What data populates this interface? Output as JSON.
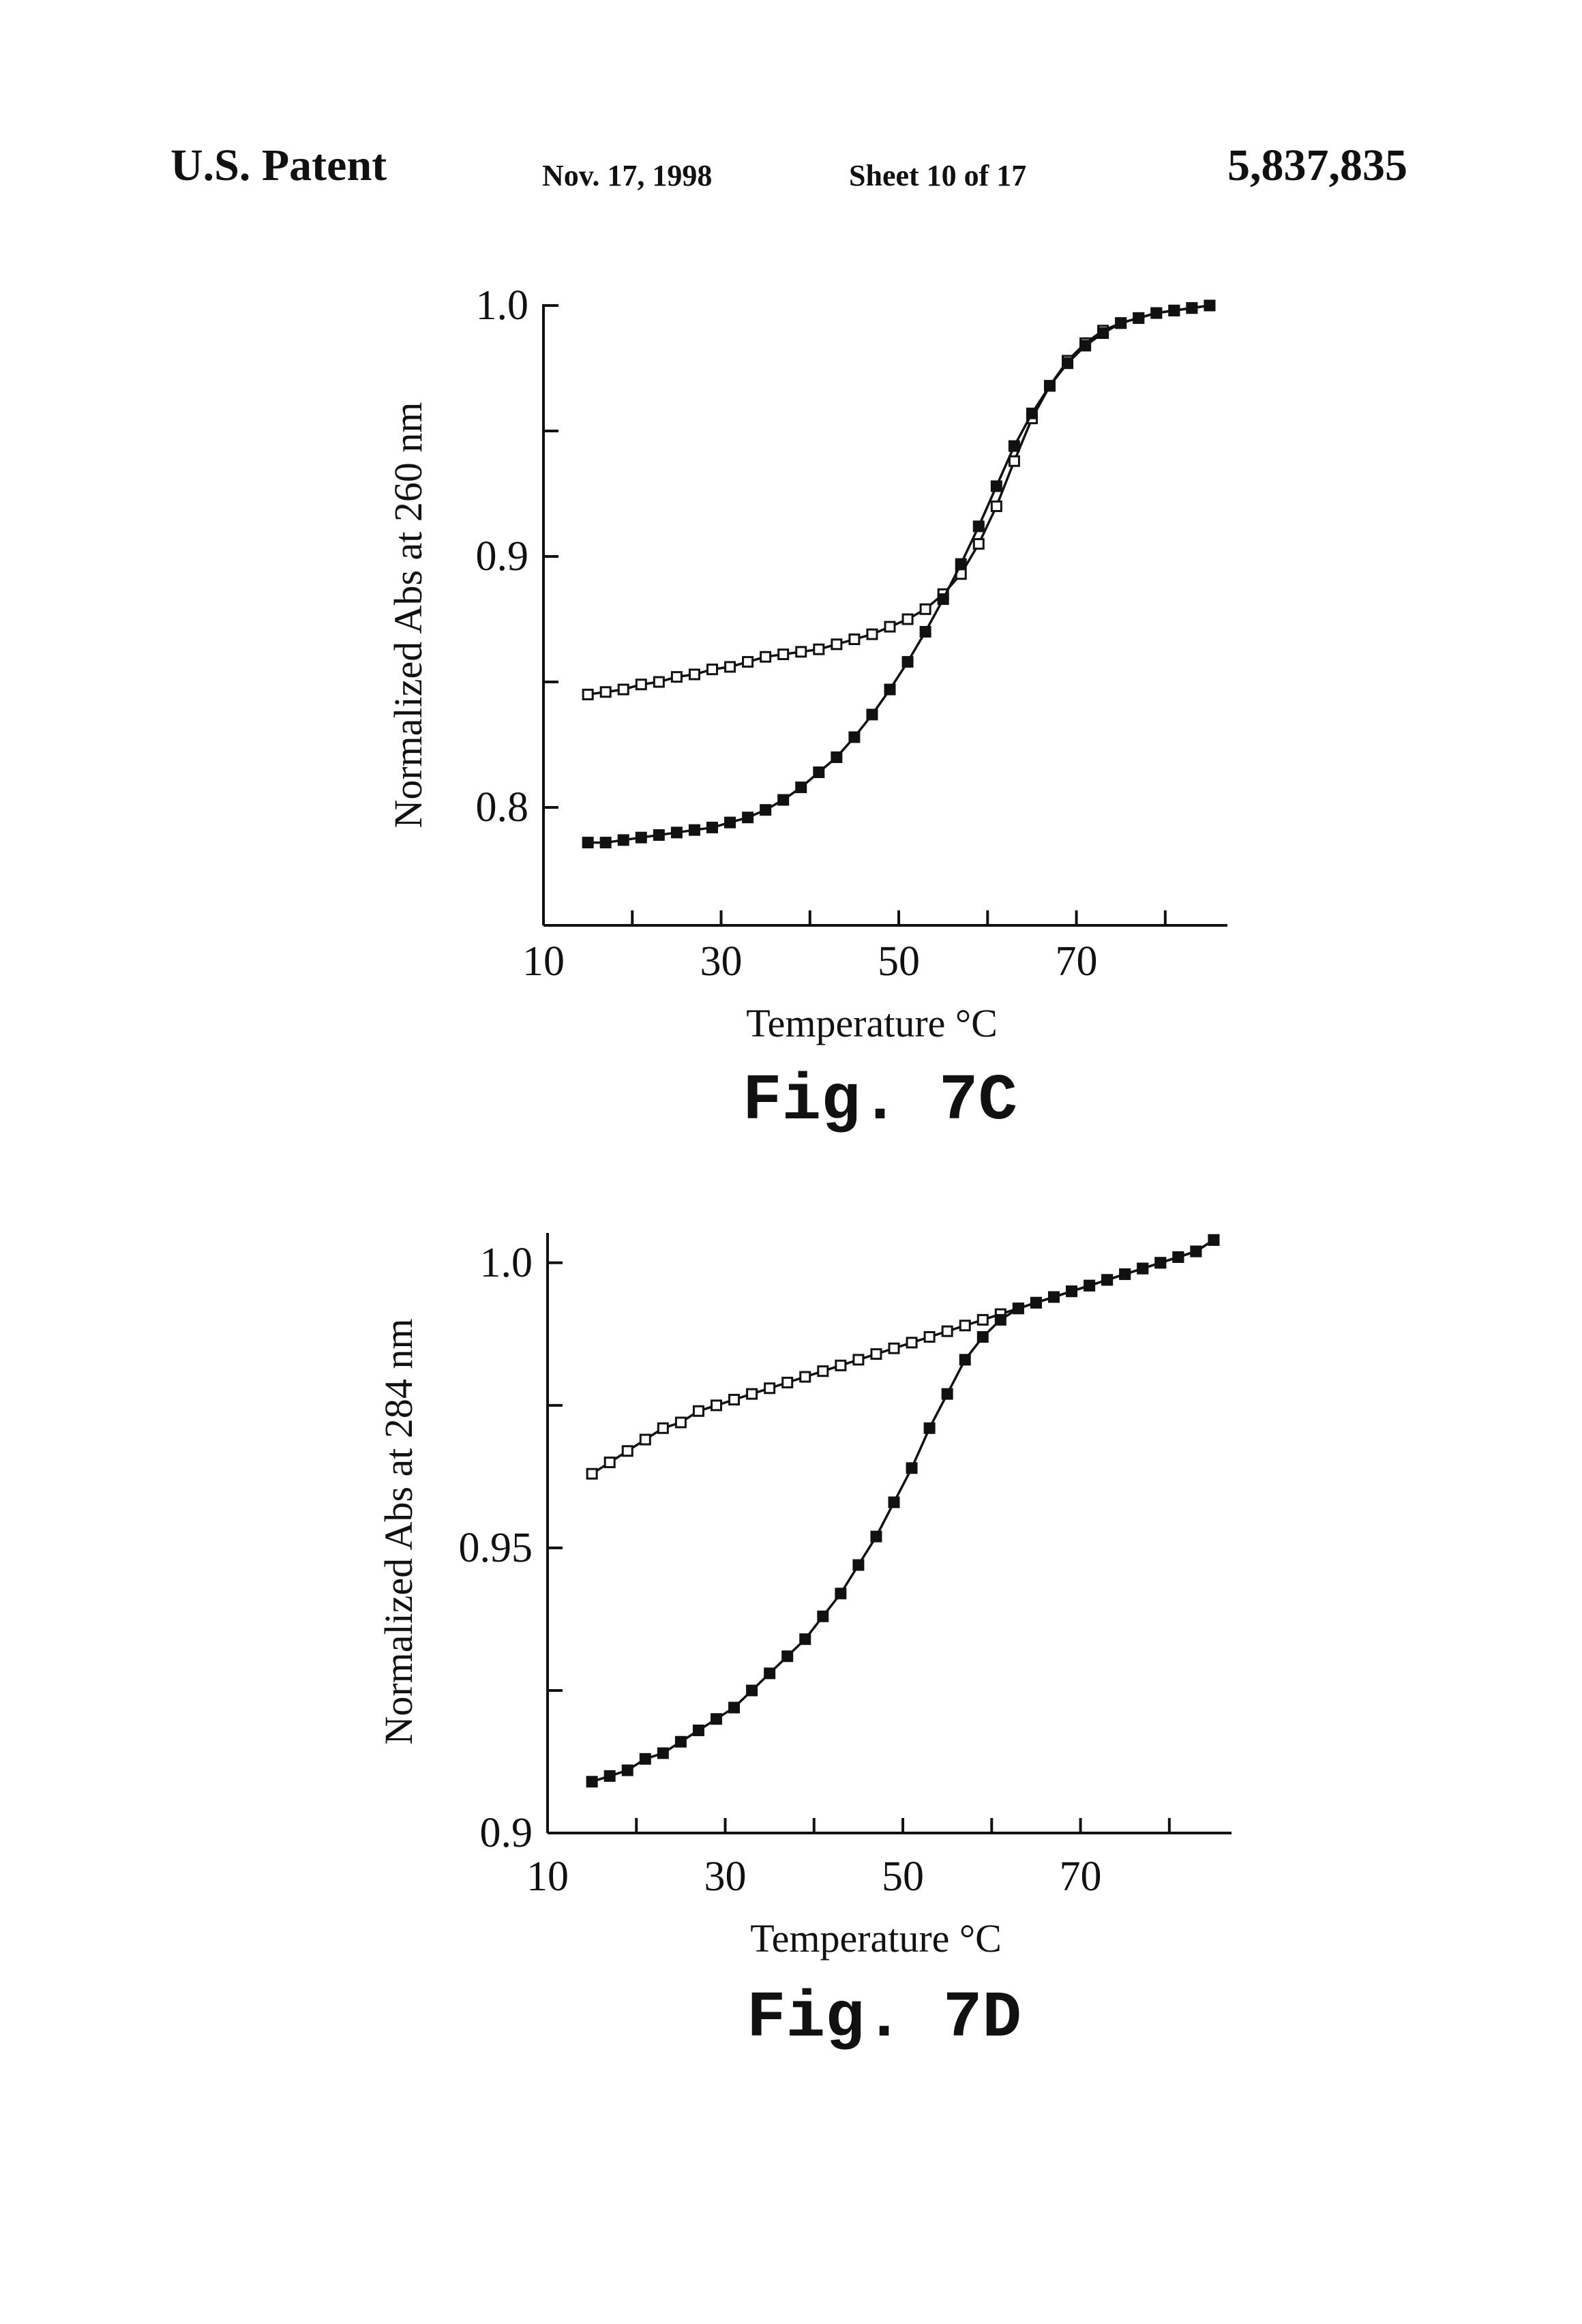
{
  "header": {
    "left": "U.S. Patent",
    "date": "Nov. 17, 1998",
    "sheet": "Sheet 10 of 17",
    "patent_number": "5,837,835"
  },
  "chart_data": [
    {
      "type": "line",
      "caption": "Fig. 7C",
      "xlabel": "Temperature °C",
      "ylabel": "Normalized Abs at 260 nm",
      "xlim": [
        10,
        87
      ],
      "ylim": [
        0.753,
        1.0
      ],
      "xticks": [
        10,
        30,
        50,
        70
      ],
      "xtick_labels": [
        "10",
        "30",
        "50",
        "70"
      ],
      "yticks": [
        0.8,
        0.9,
        1.0
      ],
      "ytick_labels": [
        "0.8",
        "0.9",
        "1.0"
      ],
      "grid": false,
      "marker_x": [
        15,
        17,
        19,
        21,
        23,
        25,
        27,
        29,
        31,
        33,
        35,
        37,
        39,
        41,
        43,
        45,
        47,
        49,
        51,
        53,
        55,
        57,
        59,
        61,
        63,
        65,
        67,
        69,
        71,
        73,
        75,
        77,
        79,
        81,
        83,
        85
      ],
      "series": [
        {
          "marker": "open-square",
          "x": [
            15,
            17,
            19,
            21,
            23,
            25,
            27,
            29,
            31,
            33,
            35,
            37,
            39,
            41,
            43,
            45,
            47,
            49,
            51,
            53,
            55,
            57,
            59,
            61,
            63,
            65,
            67,
            69,
            71,
            73,
            75,
            77,
            79,
            81,
            83,
            85
          ],
          "values": [
            0.845,
            0.846,
            0.847,
            0.849,
            0.85,
            0.852,
            0.853,
            0.855,
            0.856,
            0.858,
            0.86,
            0.861,
            0.862,
            0.863,
            0.865,
            0.867,
            0.869,
            0.872,
            0.875,
            0.879,
            0.885,
            0.893,
            0.905,
            0.92,
            0.938,
            0.955,
            0.968,
            0.978,
            0.985,
            0.99,
            0.993,
            0.995,
            0.997,
            0.998,
            0.999,
            1.0
          ]
        },
        {
          "marker": "filled-square",
          "x": [
            15,
            17,
            19,
            21,
            23,
            25,
            27,
            29,
            31,
            33,
            35,
            37,
            39,
            41,
            43,
            45,
            47,
            49,
            51,
            53,
            55,
            57,
            59,
            61,
            63,
            65,
            67,
            69,
            71,
            73,
            75,
            77,
            79,
            81,
            83,
            85
          ],
          "values": [
            0.786,
            0.786,
            0.787,
            0.788,
            0.789,
            0.79,
            0.791,
            0.792,
            0.794,
            0.796,
            0.799,
            0.803,
            0.808,
            0.814,
            0.82,
            0.828,
            0.837,
            0.847,
            0.858,
            0.87,
            0.883,
            0.897,
            0.912,
            0.928,
            0.944,
            0.957,
            0.968,
            0.977,
            0.984,
            0.989,
            0.993,
            0.995,
            0.997,
            0.998,
            0.999,
            1.0
          ]
        }
      ]
    },
    {
      "type": "line",
      "caption": "Fig. 7D",
      "xlabel": "Temperature °C",
      "ylabel": "Normalized Abs at 284 nm",
      "xlim": [
        10,
        87
      ],
      "ylim": [
        0.9,
        1.005
      ],
      "xticks": [
        10,
        30,
        50,
        70
      ],
      "xtick_labels": [
        "10",
        "30",
        "50",
        "70"
      ],
      "yticks": [
        0.9,
        0.95,
        1.0
      ],
      "ytick_labels": [
        "0.9",
        "0.95",
        "1.0"
      ],
      "grid": false,
      "series": [
        {
          "marker": "open-square",
          "x": [
            15,
            17,
            19,
            21,
            23,
            25,
            27,
            29,
            31,
            33,
            35,
            37,
            39,
            41,
            43,
            45,
            47,
            49,
            51,
            53,
            55,
            57,
            59,
            61,
            63,
            65,
            67,
            69,
            71,
            73,
            75,
            77,
            79,
            81,
            83,
            85
          ],
          "values": [
            0.963,
            0.965,
            0.967,
            0.969,
            0.971,
            0.972,
            0.974,
            0.975,
            0.976,
            0.977,
            0.978,
            0.979,
            0.98,
            0.981,
            0.982,
            0.983,
            0.984,
            0.985,
            0.986,
            0.987,
            0.988,
            0.989,
            0.99,
            0.991,
            0.992,
            0.993,
            0.994,
            0.995,
            0.996,
            0.997,
            0.998,
            0.999,
            1.0,
            1.001,
            1.002,
            1.004
          ]
        },
        {
          "marker": "filled-square",
          "x": [
            15,
            17,
            19,
            21,
            23,
            25,
            27,
            29,
            31,
            33,
            35,
            37,
            39,
            41,
            43,
            45,
            47,
            49,
            51,
            53,
            55,
            57,
            59,
            61,
            63,
            65,
            67,
            69,
            71,
            73,
            75,
            77,
            79,
            81,
            83,
            85
          ],
          "values": [
            0.909,
            0.91,
            0.911,
            0.913,
            0.914,
            0.916,
            0.918,
            0.92,
            0.922,
            0.925,
            0.928,
            0.931,
            0.934,
            0.938,
            0.942,
            0.947,
            0.952,
            0.958,
            0.964,
            0.971,
            0.977,
            0.983,
            0.987,
            0.99,
            0.992,
            0.993,
            0.994,
            0.995,
            0.996,
            0.997,
            0.998,
            0.999,
            1.0,
            1.001,
            1.002,
            1.004
          ]
        }
      ]
    }
  ]
}
